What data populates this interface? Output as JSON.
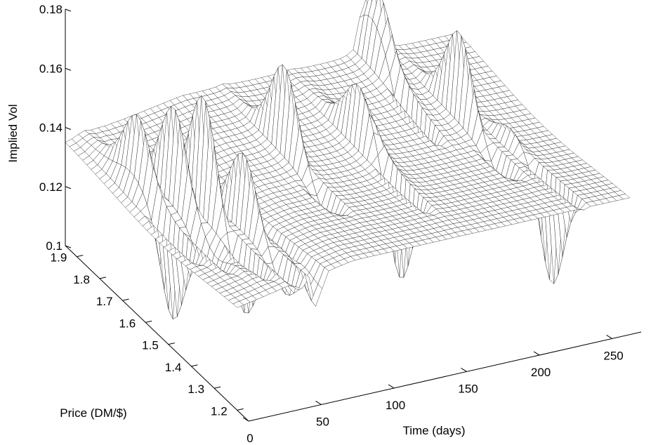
{
  "chart_data": {
    "type": "surface",
    "title": "",
    "xlabel": "Time (days)",
    "ylabel": "Price (DM/$)",
    "zlabel": "Implied Vol",
    "xlim": [
      0,
      270
    ],
    "ylim": [
      1.15,
      1.95
    ],
    "zlim": [
      0.1,
      0.18
    ],
    "x_ticks": [
      0,
      50,
      100,
      150,
      200,
      250
    ],
    "x_tick_labels": [
      "0",
      "50",
      "100",
      "150",
      "200",
      "250"
    ],
    "y_ticks": [
      1.2,
      1.3,
      1.4,
      1.5,
      1.6,
      1.7,
      1.8,
      1.9
    ],
    "y_tick_labels": [
      "1.2",
      "1.3",
      "1.4",
      "1.5",
      "1.6",
      "1.7",
      "1.8",
      "1.9"
    ],
    "z_ticks": [
      0.1,
      0.12,
      0.14,
      0.16,
      0.18
    ],
    "z_tick_labels": [
      "0.1",
      "0.12",
      "0.14",
      "0.16",
      "0.18"
    ],
    "grid": false,
    "colormap": "white faces with black mesh lines",
    "surface": {
      "base_level": 0.133,
      "long_time_level": 0.14,
      "grid_size": [
        61,
        41
      ],
      "spikes": [
        {
          "time": 12,
          "price": 1.72,
          "peak": 0.168,
          "trough": 0.092
        },
        {
          "time": 22,
          "price": 1.62,
          "peak": 0.163,
          "trough": 0.088
        },
        {
          "time": 32,
          "price": 1.55,
          "peak": 0.17,
          "trough": 0.086
        },
        {
          "time": 45,
          "price": 1.46,
          "peak": 0.155,
          "trough": 0.09
        },
        {
          "time": 58,
          "price": 1.38,
          "peak": 0.128,
          "trough": 0.094
        },
        {
          "time": 108,
          "price": 1.68,
          "peak": 0.158,
          "trough": 0.1
        },
        {
          "time": 155,
          "price": 1.64,
          "peak": 0.176,
          "trough": 0.1
        },
        {
          "time": 205,
          "price": 1.9,
          "peak": 0.183,
          "trough": 0.102
        },
        {
          "time": 225,
          "price": 1.66,
          "peak": 0.158,
          "trough": 0.098
        },
        {
          "time": 240,
          "price": 1.52,
          "peak": 0.142,
          "trough": 0.095
        }
      ]
    }
  }
}
